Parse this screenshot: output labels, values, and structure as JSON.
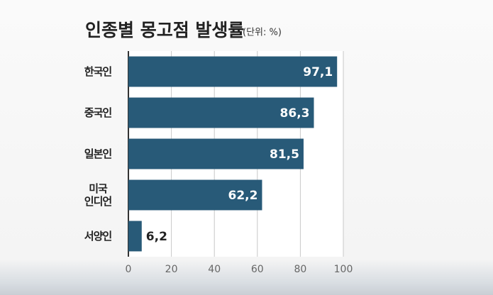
{
  "chart_data": {
    "type": "bar",
    "orientation": "horizontal",
    "title": "인종별 몽고점 발생률",
    "subtitle": "(단위: %)",
    "categories": [
      "한국인",
      "중국인",
      "일본인",
      "미국\n인디언",
      "서양인"
    ],
    "values": [
      97.1,
      86.3,
      81.5,
      62.2,
      6.2
    ],
    "value_labels": [
      "97,1",
      "86,3",
      "81,5",
      "62,2",
      "6,2"
    ],
    "color": "#285a78",
    "xlim": [
      0,
      100
    ],
    "xticks": [
      0,
      20,
      40,
      60,
      80,
      100
    ],
    "grid": true
  }
}
